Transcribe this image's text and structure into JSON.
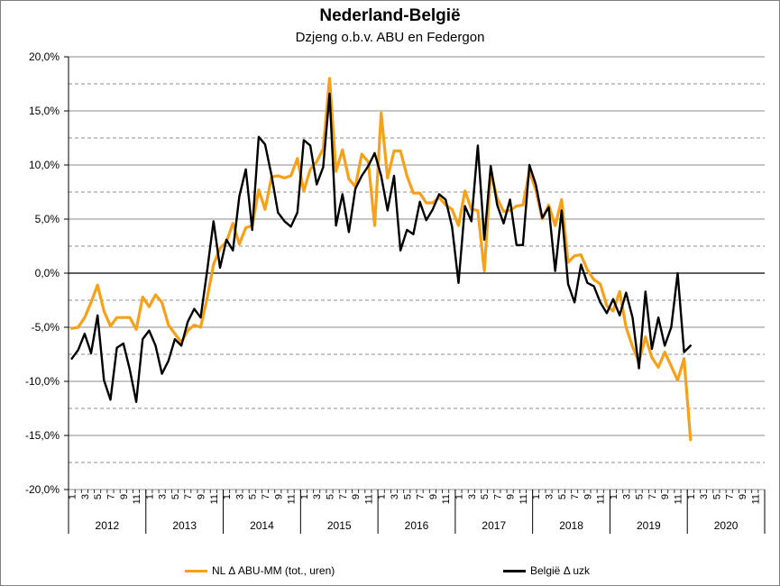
{
  "chart_data": {
    "type": "line",
    "title": "Nederland-België",
    "subtitle": "Dzjeng o.b.v. ABU en Federgon",
    "xlabel": "",
    "ylabel": "",
    "ylim": [
      -20,
      20
    ],
    "yticks": [
      20,
      15,
      10,
      5,
      0,
      -5,
      -10,
      -15,
      -20
    ],
    "ytick_labels": [
      "20,0%",
      "15,0%",
      "10,0%",
      "5,0%",
      "0,0%",
      "-5,0%",
      "-10,0%",
      "-15,0%",
      "-20,0%"
    ],
    "x_axis": {
      "years": [
        "2012",
        "2013",
        "2014",
        "2015",
        "2016",
        "2017",
        "2018",
        "2019",
        "2020"
      ],
      "month_tick_labels": [
        "1",
        "3",
        "5",
        "7",
        "9",
        "11"
      ]
    },
    "grid": true,
    "legend": "bottom",
    "x": [
      "2012-01",
      "2012-02",
      "2012-03",
      "2012-04",
      "2012-05",
      "2012-06",
      "2012-07",
      "2012-08",
      "2012-09",
      "2012-10",
      "2012-11",
      "2012-12",
      "2013-01",
      "2013-02",
      "2013-03",
      "2013-04",
      "2013-05",
      "2013-06",
      "2013-07",
      "2013-08",
      "2013-09",
      "2013-10",
      "2013-11",
      "2013-12",
      "2014-01",
      "2014-02",
      "2014-03",
      "2014-04",
      "2014-05",
      "2014-06",
      "2014-07",
      "2014-08",
      "2014-09",
      "2014-10",
      "2014-11",
      "2014-12",
      "2015-01",
      "2015-02",
      "2015-03",
      "2015-04",
      "2015-05",
      "2015-06",
      "2015-07",
      "2015-08",
      "2015-09",
      "2015-10",
      "2015-11",
      "2015-12",
      "2016-01",
      "2016-02",
      "2016-03",
      "2016-04",
      "2016-05",
      "2016-06",
      "2016-07",
      "2016-08",
      "2016-09",
      "2016-10",
      "2016-11",
      "2016-12",
      "2017-01",
      "2017-02",
      "2017-03",
      "2017-04",
      "2017-05",
      "2017-06",
      "2017-07",
      "2017-08",
      "2017-09",
      "2017-10",
      "2017-11",
      "2017-12",
      "2018-01",
      "2018-02",
      "2018-03",
      "2018-04",
      "2018-05",
      "2018-06",
      "2018-07",
      "2018-08",
      "2018-09",
      "2018-10",
      "2018-11",
      "2018-12",
      "2019-01",
      "2019-02",
      "2019-03",
      "2019-04",
      "2019-05",
      "2019-06",
      "2019-07",
      "2019-08",
      "2019-09",
      "2019-10",
      "2019-11",
      "2019-12",
      "2020-01"
    ],
    "series": [
      {
        "name": "NL Δ ABU-MM (tot., uren)",
        "color": "#F7A11A",
        "values": [
          -5.1,
          -5.0,
          -4.1,
          -2.7,
          -1.1,
          -3.5,
          -4.9,
          -4.1,
          -4.1,
          -4.1,
          -5.2,
          -2.2,
          -3.1,
          -2.0,
          -2.7,
          -4.8,
          -5.6,
          -6.4,
          -5.3,
          -4.8,
          -5.0,
          -2.3,
          0.8,
          2.3,
          2.9,
          4.6,
          2.7,
          4.2,
          4.4,
          7.7,
          5.9,
          8.9,
          9.0,
          8.8,
          9.0,
          10.6,
          7.6,
          9.6,
          10.3,
          11.5,
          18.0,
          9.4,
          11.4,
          8.7,
          8.0,
          11.0,
          10.3,
          4.4,
          14.8,
          8.8,
          11.3,
          11.3,
          9.0,
          7.4,
          7.4,
          6.5,
          6.5,
          7.0,
          6.3,
          5.9,
          4.4,
          7.6,
          5.9,
          5.8,
          0.2,
          9.4,
          6.9,
          5.7,
          5.8,
          6.2,
          6.3,
          9.4,
          7.7,
          5.0,
          6.3,
          4.4,
          6.8,
          1.0,
          1.6,
          1.7,
          0.3,
          -0.6,
          -1.0,
          -3.0,
          -3.5,
          -1.7,
          -5.0,
          -6.8,
          -8.2,
          -5.9,
          -7.8,
          -8.7,
          -7.3,
          -8.6,
          -9.9,
          -7.9,
          -15.4
        ]
      },
      {
        "name": "België Δ uzk",
        "color": "#000000",
        "values": [
          -7.9,
          -7.1,
          -5.6,
          -7.4,
          -3.9,
          -9.9,
          -11.7,
          -6.9,
          -6.5,
          -8.9,
          -11.9,
          -6.1,
          -5.3,
          -6.7,
          -9.3,
          -8.1,
          -6.1,
          -6.7,
          -4.5,
          -3.3,
          -4.1,
          0.2,
          4.8,
          0.5,
          3.1,
          2.1,
          7.1,
          9.6,
          4.0,
          12.6,
          11.9,
          9.0,
          5.6,
          4.8,
          4.3,
          5.6,
          12.3,
          11.8,
          8.2,
          9.8,
          16.6,
          4.4,
          7.3,
          3.8,
          7.8,
          9.0,
          9.9,
          11.1,
          9.0,
          5.8,
          9.0,
          2.1,
          4.0,
          3.6,
          6.6,
          4.9,
          5.9,
          7.3,
          6.8,
          4.3,
          -0.9,
          6.2,
          4.8,
          11.8,
          3.1,
          9.9,
          6.3,
          4.6,
          6.8,
          2.6,
          2.6,
          10.0,
          8.2,
          5.1,
          6.1,
          0.2,
          5.8,
          -1.0,
          -2.7,
          0.8,
          -0.9,
          -1.2,
          -2.7,
          -3.7,
          -2.4,
          -3.9,
          -1.8,
          -4.1,
          -8.8,
          -1.7,
          -7.0,
          -4.1,
          -6.7,
          -5.0,
          0.0,
          -7.3,
          -6.7
        ]
      }
    ]
  }
}
